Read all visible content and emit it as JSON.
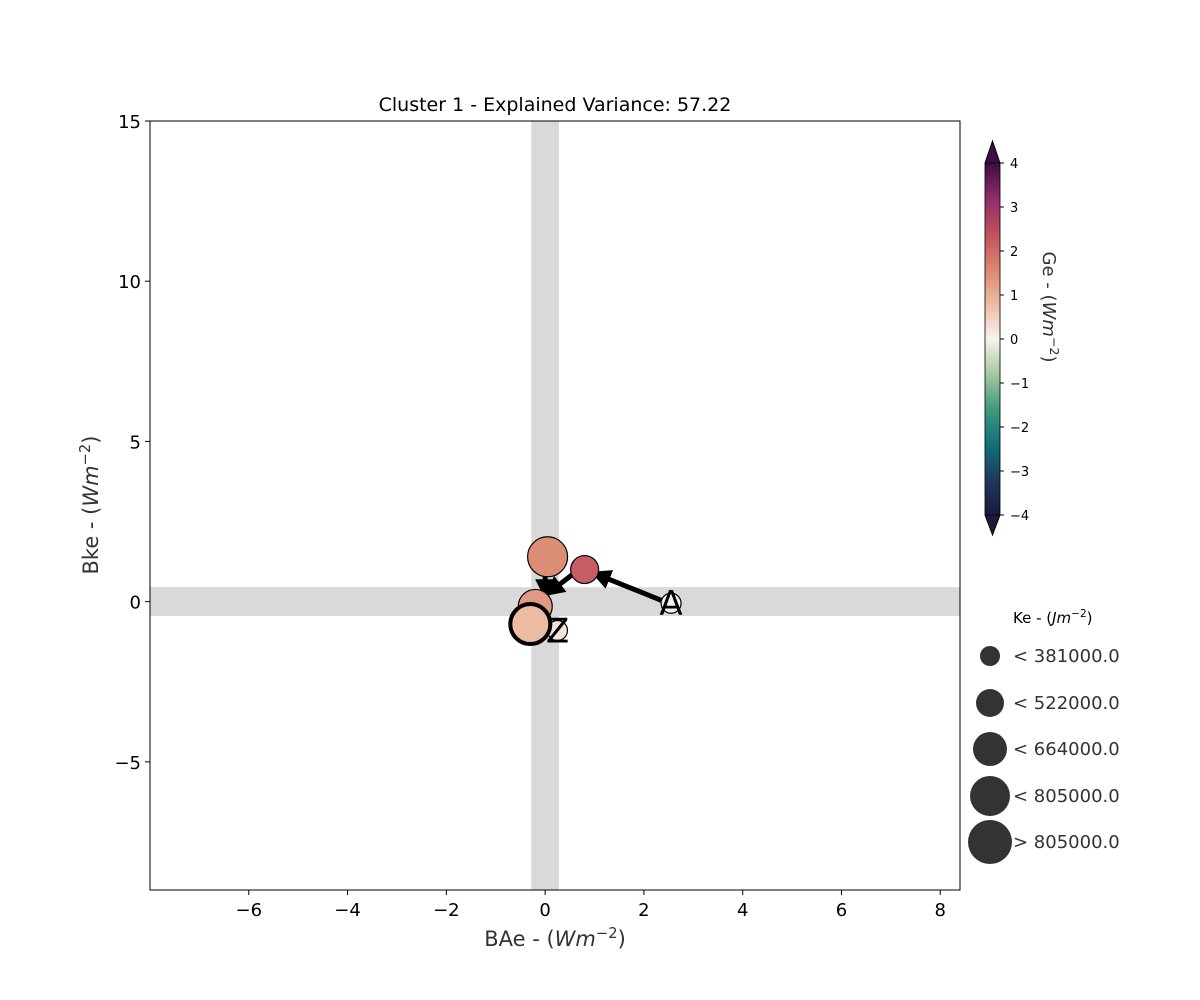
{
  "chart_data": {
    "type": "scatter",
    "title": "Cluster 1 - Explained Variance: 57.22",
    "xlabel": "BAe - ($Wm^{-2}$)",
    "ylabel": "Bke - ($Wm^{-2}$)",
    "xlim": [
      -8.0,
      8.4
    ],
    "ylim": [
      -9.0,
      15.0
    ],
    "xticks": [
      -6,
      -4,
      -2,
      0,
      2,
      4,
      6,
      8
    ],
    "yticks": [
      -5,
      0,
      5,
      10,
      15
    ],
    "xtick_labels": [
      "−6",
      "−4",
      "−2",
      "0",
      "2",
      "4",
      "6",
      "8"
    ],
    "ytick_labels": [
      "−5",
      "0",
      "5",
      "10",
      "15"
    ],
    "grid": false,
    "shaded_bands": {
      "x_center": 0,
      "x_half_width": 0.28,
      "y_center": 0,
      "y_half_width": 0.45,
      "color": "#d9d9d9"
    },
    "trajectory": [
      {
        "x": 2.55,
        "y": -0.05,
        "ge": 0.0,
        "ke_class": 0,
        "label": "A"
      },
      {
        "x": 0.8,
        "y": 1.0,
        "ge": 2.2,
        "ke_class": 1,
        "label": ""
      },
      {
        "x": 0.05,
        "y": 1.4,
        "ge": 1.5,
        "ke_class": 3,
        "label": ""
      },
      {
        "x": -0.2,
        "y": -0.15,
        "ge": 1.3,
        "ke_class": 2,
        "label": ""
      },
      {
        "x": 0.25,
        "y": -0.9,
        "ge": 0.2,
        "ke_class": 0,
        "label": "Z"
      },
      {
        "x": -0.3,
        "y": -0.7,
        "ge": 0.8,
        "ke_class": 3,
        "label": "",
        "highlight": true
      }
    ],
    "arrows": [
      {
        "from": [
          2.45,
          -0.02
        ],
        "to": [
          1.0,
          0.88
        ]
      },
      {
        "from": [
          0.6,
          0.9
        ],
        "to": [
          0.05,
          0.25
        ]
      },
      {
        "from": [
          0.0,
          0.85
        ],
        "to": [
          0.0,
          0.2
        ]
      }
    ],
    "colorbar": {
      "label": "Ge - ($Wm^{-2}$)",
      "min": -4,
      "max": 4,
      "ticks": [
        -4,
        -3,
        -2,
        -1,
        0,
        1,
        2,
        3,
        4
      ],
      "tick_labels": [
        "−4",
        "−3",
        "−2",
        "−1",
        "0",
        "1",
        "2",
        "3",
        "4"
      ],
      "colormap": [
        "#1a1a3d",
        "#1c3a5e",
        "#13707a",
        "#3c9a7f",
        "#a3c99d",
        "#f7f3ef",
        "#ecbca2",
        "#d98670",
        "#c14f5f",
        "#8e2c6d",
        "#3b0f3f"
      ],
      "extend": "both"
    },
    "size_legend": {
      "title": "Ke - ($Jm^{-2}$)",
      "entries": [
        {
          "label": "< 381000.0"
        },
        {
          "label": "< 522000.0"
        },
        {
          "label": "< 664000.0"
        },
        {
          "label": "< 805000.0"
        },
        {
          "label": "> 805000.0"
        }
      ],
      "marker_color": "#333333"
    }
  }
}
